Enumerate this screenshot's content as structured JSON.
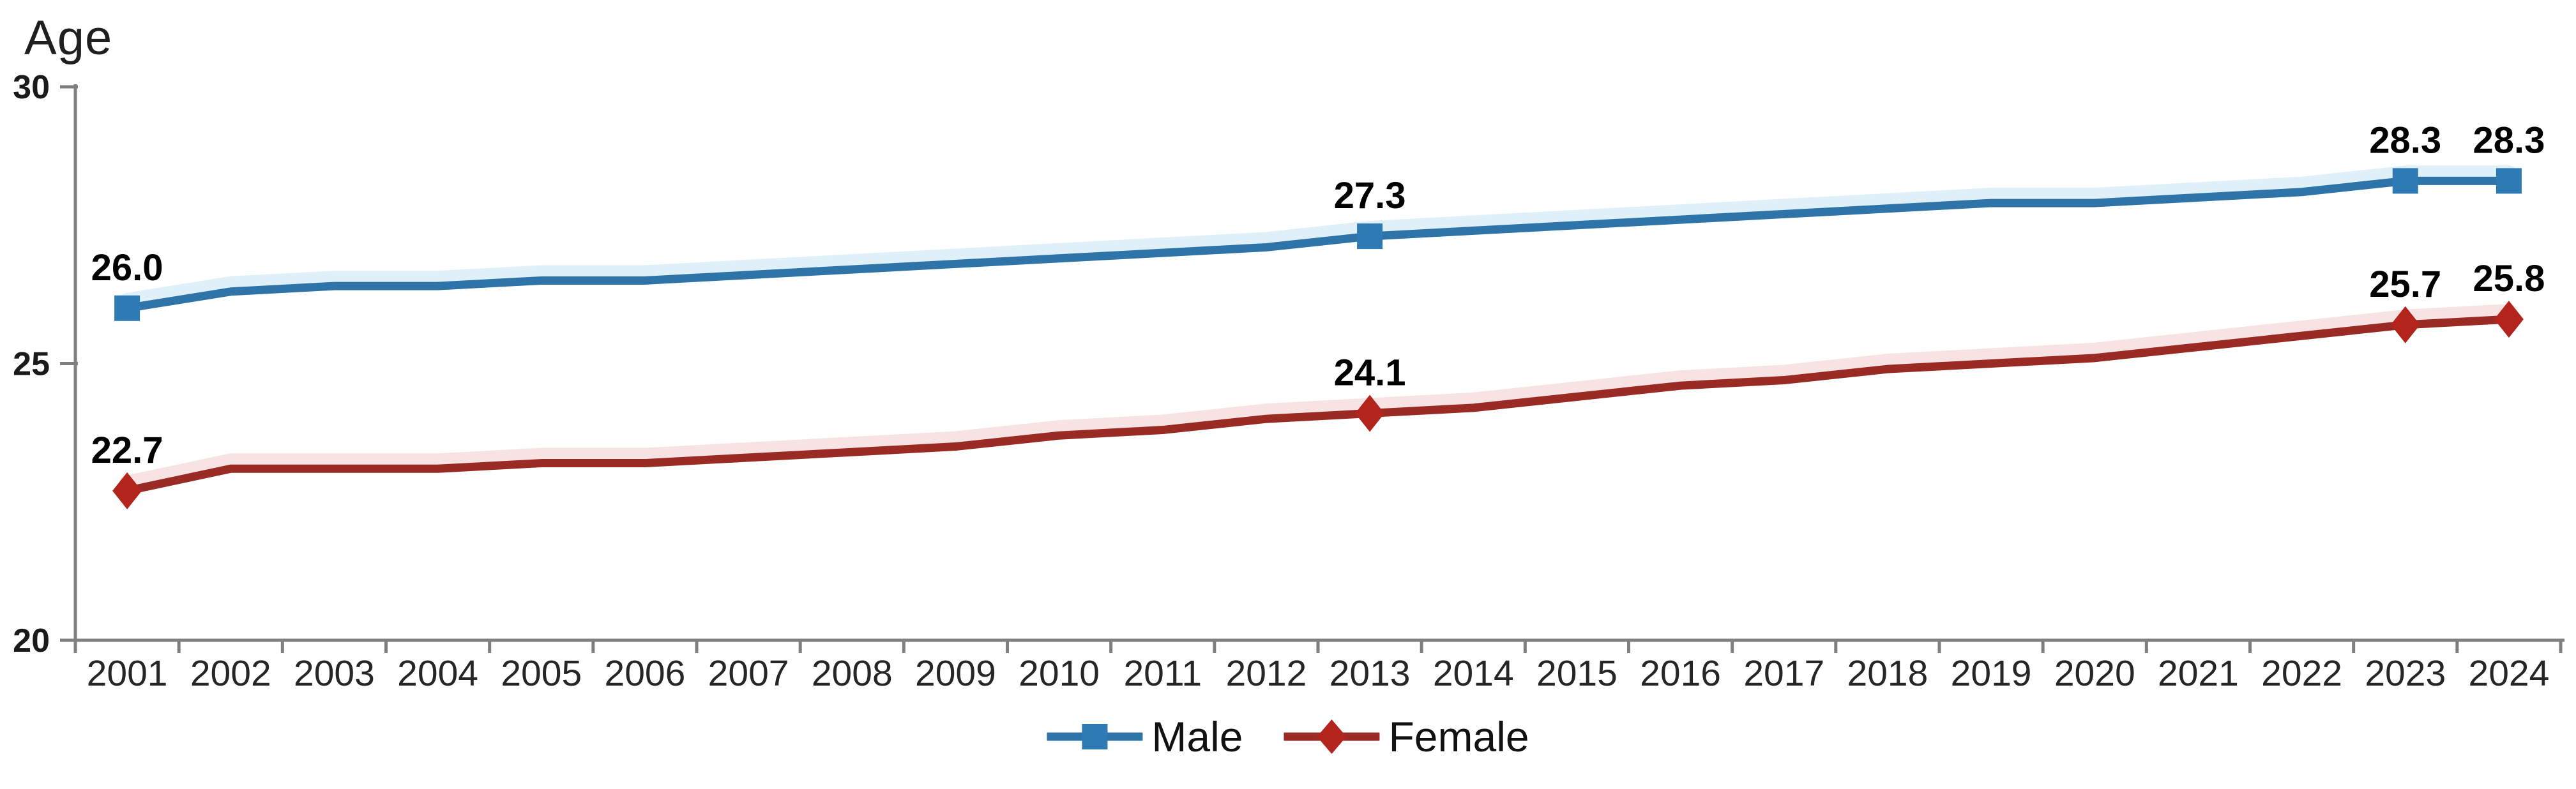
{
  "chart_data": {
    "type": "line",
    "title": "",
    "ylabel": "Age",
    "xlabel": "",
    "x": [
      2001,
      2002,
      2003,
      2004,
      2005,
      2006,
      2007,
      2008,
      2009,
      2010,
      2011,
      2012,
      2013,
      2014,
      2015,
      2016,
      2017,
      2018,
      2019,
      2020,
      2021,
      2022,
      2023,
      2024
    ],
    "ylim": [
      20,
      30
    ],
    "yticks": [
      30,
      25,
      20
    ],
    "grid": false,
    "legend_position": "bottom",
    "background_color": "#ffffff",
    "axis_color": "#7f7f7f",
    "year_label_color": "#262626",
    "ytick_label_color": "#1a1a1a",
    "data_label_color": "#000000",
    "series": [
      {
        "name": "Male",
        "marker": "square",
        "line_color": "#2e74a8",
        "marker_color": "#2e7ab5",
        "halo_color": "#d9edf8",
        "values": [
          26.0,
          26.3,
          26.4,
          26.4,
          26.5,
          26.5,
          26.6,
          26.7,
          26.8,
          26.9,
          27.0,
          27.1,
          27.3,
          27.4,
          27.5,
          27.6,
          27.7,
          27.8,
          27.9,
          27.9,
          28.0,
          28.1,
          28.3,
          28.3
        ],
        "point_labels": [
          {
            "x": 2001,
            "text": "26.0"
          },
          {
            "x": 2013,
            "text": "27.3"
          },
          {
            "x": 2023,
            "text": "28.3"
          },
          {
            "x": 2024,
            "text": "28.3"
          }
        ]
      },
      {
        "name": "Female",
        "marker": "diamond",
        "line_color": "#9a2a24",
        "marker_color": "#b2241c",
        "halo_color": "#f6dede",
        "values": [
          22.7,
          23.1,
          23.1,
          23.1,
          23.2,
          23.2,
          23.3,
          23.4,
          23.5,
          23.7,
          23.8,
          24.0,
          24.1,
          24.2,
          24.4,
          24.6,
          24.7,
          24.9,
          25.0,
          25.1,
          25.3,
          25.5,
          25.7,
          25.8
        ],
        "point_labels": [
          {
            "x": 2001,
            "text": "22.7"
          },
          {
            "x": 2013,
            "text": "24.1"
          },
          {
            "x": 2023,
            "text": "25.7"
          },
          {
            "x": 2024,
            "text": "25.8"
          }
        ]
      }
    ]
  }
}
